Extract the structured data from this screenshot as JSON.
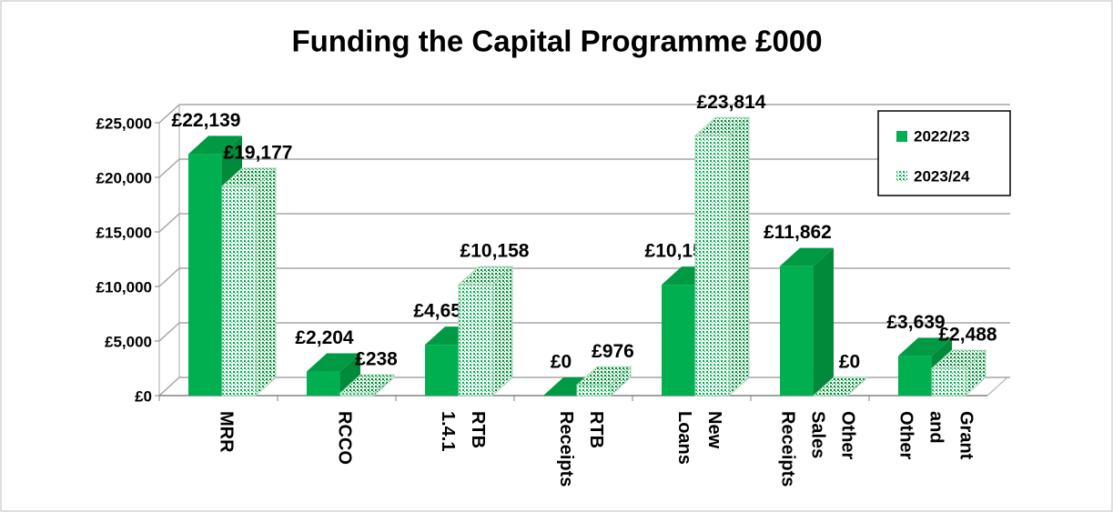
{
  "chart_data": {
    "type": "bar3d",
    "title": "Funding the Capital Programme £000",
    "categories": [
      "MRR",
      "RCCO",
      "RTB 1.4.1",
      "RTB Receipts",
      "New Loans",
      "Other Sales Receipts",
      "Grant and Other"
    ],
    "series": [
      {
        "name": "2022/23",
        "color": "#00b050",
        "values": [
          22139,
          2204,
          4656,
          0,
          10157,
          11862,
          3639
        ],
        "value_labels": [
          "£22,139",
          "£2,204",
          "£4,656",
          "£0",
          "£10,157",
          "£11,862",
          "£3,639"
        ]
      },
      {
        "name": "2023/24",
        "color": "#00b050",
        "pattern": "dotted",
        "values": [
          19177,
          238,
          10158,
          976,
          23814,
          0,
          2488
        ],
        "value_labels": [
          "£19,177",
          "£238",
          "£10,158",
          "£976",
          "£23,814",
          "£0",
          "£2,488"
        ]
      }
    ],
    "ylim": [
      0,
      25000
    ],
    "yticks": [
      {
        "value": 0,
        "label": "£0"
      },
      {
        "value": 5000,
        "label": "£5,000"
      },
      {
        "value": 10000,
        "label": "£10,000"
      },
      {
        "value": 15000,
        "label": "£15,000"
      },
      {
        "value": 20000,
        "label": "£20,000"
      },
      {
        "value": 25000,
        "label": "£25,000"
      }
    ],
    "grid": true,
    "legend": "top-right"
  }
}
